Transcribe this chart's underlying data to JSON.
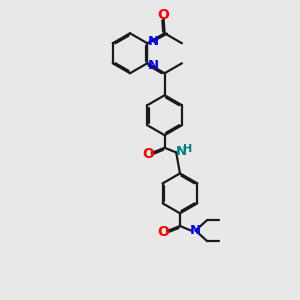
{
  "bg_color": "#e8e8e8",
  "bond_color": "#1a1a1a",
  "N_color": "#0000ff",
  "O_color": "#ff0000",
  "NH_color": "#008080",
  "lw": 1.6,
  "xlim": [
    0,
    10
  ],
  "ylim": [
    0,
    14
  ],
  "s": 0.95
}
